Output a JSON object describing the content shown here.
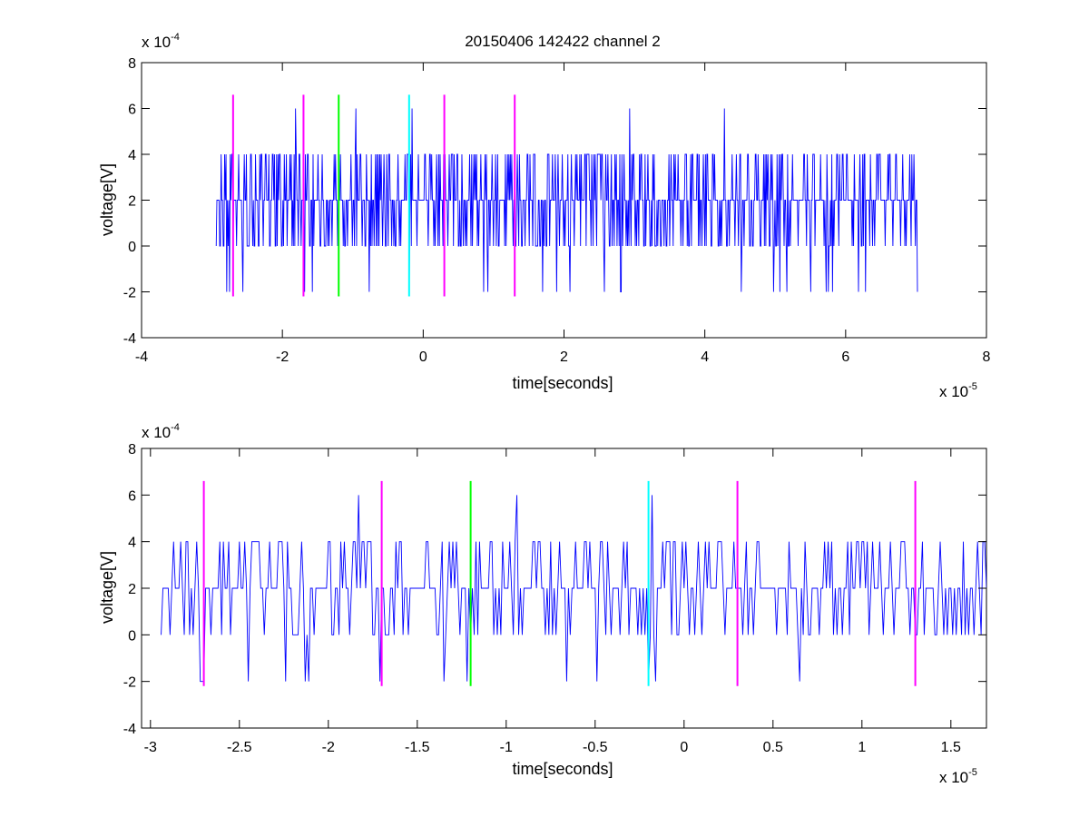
{
  "chart_data": [
    {
      "type": "line",
      "title": "20150406 142422 channel 2",
      "xlabel": "time[seconds]",
      "ylabel": "voltage[V]",
      "x_multiplier": {
        "base": "x 10",
        "exp": "-5"
      },
      "y_multiplier": {
        "base": "x 10",
        "exp": "-4"
      },
      "xlim": [
        -4,
        8
      ],
      "ylim": [
        -4,
        8
      ],
      "xticks": [
        "-4",
        "-2",
        "0",
        "2",
        "4",
        "6",
        "8"
      ],
      "yticks": [
        "-4",
        "-2",
        "0",
        "2",
        "4",
        "6",
        "8"
      ],
      "xtick_values": [
        -4,
        -2,
        0,
        2,
        4,
        6,
        8
      ],
      "ytick_values": [
        -4,
        -2,
        0,
        2,
        4,
        6,
        8
      ],
      "grid": false,
      "series": [
        {
          "color": "#0000ff",
          "x_start": -2.94,
          "x_end": 7.02,
          "n_samples": 1000,
          "levels": [
            -2,
            0,
            2,
            4,
            6
          ],
          "peak_points": [
            [
              -1.81,
              6
            ],
            [
              -0.96,
              6
            ],
            [
              -0.16,
              6
            ],
            [
              2.93,
              6
            ],
            [
              4.28,
              6
            ]
          ],
          "trough_points": [
            [
              -2.75,
              -2
            ],
            [
              -1.68,
              -2
            ],
            [
              -0.2,
              -2
            ],
            [
              6.18,
              -2
            ]
          ]
        }
      ],
      "markers": [
        {
          "x": -2.7,
          "color": "#ff00ff",
          "y_range": [
            -2.2,
            6.6
          ]
        },
        {
          "x": -1.7,
          "color": "#ff00ff",
          "y_range": [
            -2.2,
            6.6
          ]
        },
        {
          "x": -1.2,
          "color": "#00ff00",
          "y_range": [
            -2.2,
            6.6
          ]
        },
        {
          "x": -0.2,
          "color": "#00ffff",
          "y_range": [
            -2.2,
            6.6
          ]
        },
        {
          "x": 0.3,
          "color": "#ff00ff",
          "y_range": [
            -2.2,
            6.6
          ]
        },
        {
          "x": 1.3,
          "color": "#ff00ff",
          "y_range": [
            -2.2,
            6.6
          ]
        }
      ]
    },
    {
      "type": "line",
      "title": "",
      "xlabel": "time[seconds]",
      "ylabel": "voltage[V]",
      "x_multiplier": {
        "base": "x 10",
        "exp": "-5"
      },
      "y_multiplier": {
        "base": "x 10",
        "exp": "-4"
      },
      "xlim": [
        -3.05,
        1.7
      ],
      "ylim": [
        -4,
        8
      ],
      "xticks": [
        "-3",
        "-2.5",
        "-2",
        "-1.5",
        "-1",
        "-0.5",
        "0",
        "0.5",
        "1",
        "1.5"
      ],
      "yticks": [
        "-4",
        "-2",
        "0",
        "2",
        "4",
        "6",
        "8"
      ],
      "xtick_values": [
        -3,
        -2.5,
        -2,
        -1.5,
        -1,
        -0.5,
        0,
        0.5,
        1,
        1.5
      ],
      "ytick_values": [
        -4,
        -2,
        0,
        2,
        4,
        6,
        8
      ],
      "grid": false,
      "series": [
        {
          "color": "#0000ff",
          "x_start": -2.94,
          "x_end": 1.7,
          "n_samples": 465,
          "levels": [
            -2,
            0,
            2,
            4,
            6
          ],
          "peak_points": [
            [
              -1.83,
              6
            ],
            [
              -0.94,
              6
            ],
            [
              -0.18,
              6
            ]
          ],
          "trough_points": [
            [
              -2.72,
              -2
            ],
            [
              -2.45,
              -2
            ],
            [
              -1.35,
              -2
            ],
            [
              -0.2,
              -2
            ]
          ]
        }
      ],
      "markers": [
        {
          "x": -2.7,
          "color": "#ff00ff",
          "y_range": [
            -2.2,
            6.6
          ]
        },
        {
          "x": -1.7,
          "color": "#ff00ff",
          "y_range": [
            -2.2,
            6.6
          ]
        },
        {
          "x": -1.2,
          "color": "#00ff00",
          "y_range": [
            -2.2,
            6.6
          ]
        },
        {
          "x": -0.2,
          "color": "#00ffff",
          "y_range": [
            -2.2,
            6.6
          ]
        },
        {
          "x": 0.3,
          "color": "#ff00ff",
          "y_range": [
            -2.2,
            6.6
          ]
        },
        {
          "x": 1.3,
          "color": "#ff00ff",
          "y_range": [
            -2.2,
            6.6
          ]
        }
      ]
    }
  ]
}
